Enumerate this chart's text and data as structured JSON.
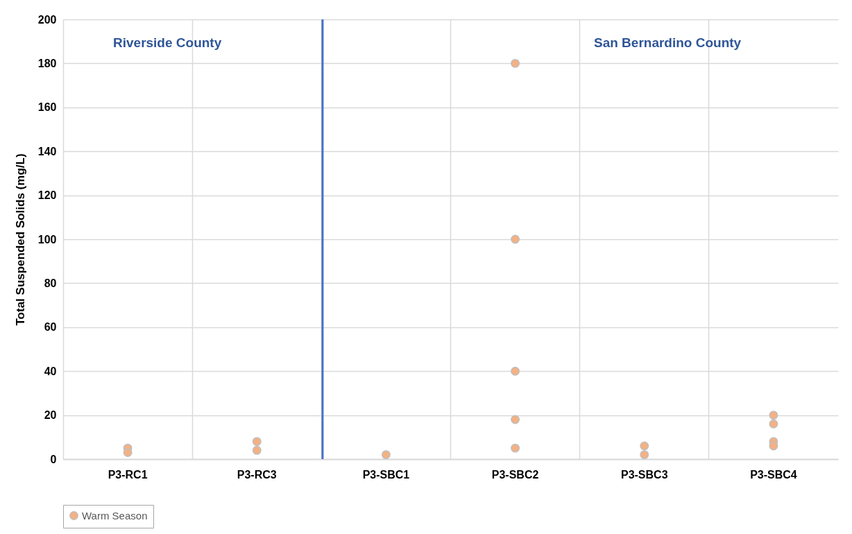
{
  "chart_data": {
    "type": "scatter",
    "ylabel": "Total Suspended Solids (mg/L)",
    "categories": [
      "P3-RC1",
      "P3-RC3",
      "P3-SBC1",
      "P3-SBC2",
      "P3-SBC3",
      "P3-SBC4"
    ],
    "series": [
      {
        "name": "Warm Season",
        "color": "#f4b183",
        "type": "scatter",
        "x": [
          "P3-RC1",
          "P3-RC1",
          "P3-RC3",
          "P3-RC3",
          "P3-SBC1",
          "P3-SBC2",
          "P3-SBC2",
          "P3-SBC2",
          "P3-SBC2",
          "P3-SBC2",
          "P3-SBC3",
          "P3-SBC3",
          "P3-SBC4",
          "P3-SBC4",
          "P3-SBC4",
          "P3-SBC4"
        ],
        "values": [
          5,
          3,
          8,
          4,
          2,
          180,
          100,
          40,
          18,
          5,
          6,
          2,
          20,
          16,
          8,
          6
        ]
      }
    ],
    "ylim": [
      0,
      200
    ],
    "yticks": [
      0,
      20,
      40,
      60,
      80,
      100,
      120,
      140,
      160,
      180,
      200
    ],
    "grid": true,
    "legend": "bottom",
    "marker": "circle",
    "ref_lines": [
      {
        "axis": "x",
        "value": "P3-SBC1",
        "color": "#4472c4"
      }
    ],
    "annotations": [
      "Riverside County",
      "San Bernardino County"
    ]
  }
}
